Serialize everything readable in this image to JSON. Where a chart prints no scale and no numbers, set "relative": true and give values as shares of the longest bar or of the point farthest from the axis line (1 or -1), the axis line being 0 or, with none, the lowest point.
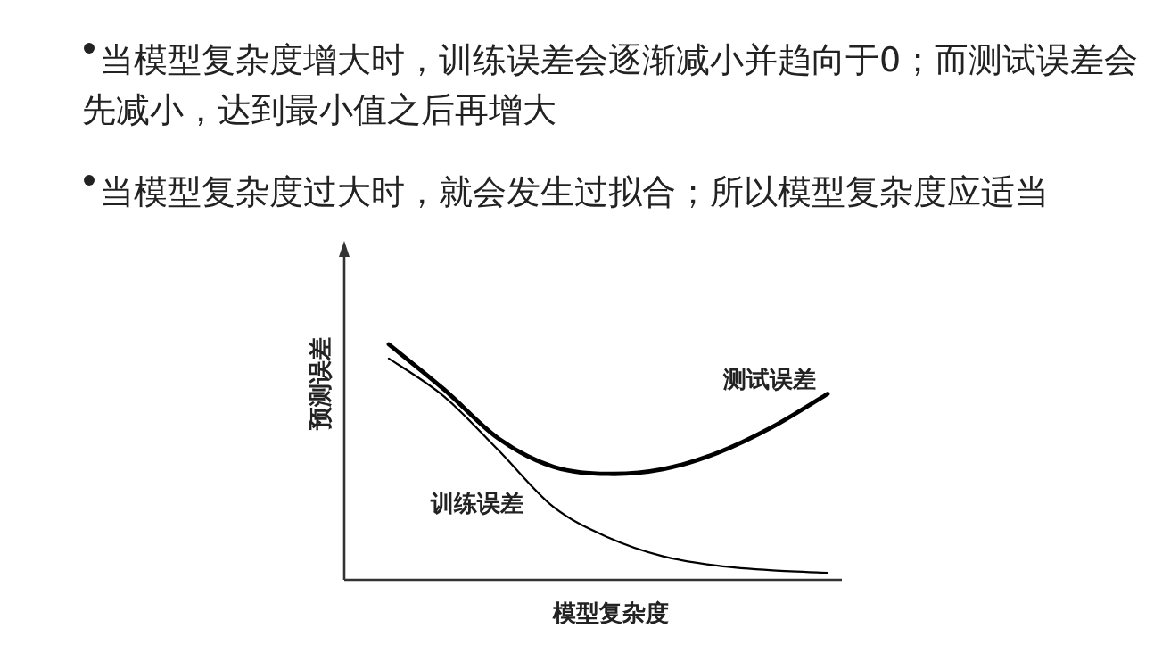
{
  "chart_data": {
    "type": "line",
    "relative": true,
    "xlabel": "模型复杂度",
    "ylabel": "预测误差",
    "annotations": [
      "当模型复杂度增大时，训练误差会逐渐减小并趋向于0；而测试误差会先减小，达到最小值之后再增大",
      "当模型复杂度过大时，就会发生过拟合；所以模型复杂度应适当"
    ],
    "categories": [
      null,
      null,
      null,
      null,
      null,
      null,
      null,
      null,
      null
    ],
    "series": [
      {
        "name": "测试误差",
        "color": "#000000",
        "values": [
          1,
          0.81,
          0.6,
          0.48,
          0.45,
          0.47,
          0.54,
          0.65,
          0.79
        ]
      },
      {
        "name": "训练误差",
        "color": "#000000",
        "values": [
          0.94,
          0.78,
          0.55,
          0.31,
          0.18,
          0.1,
          0.06,
          0.04,
          0.03
        ]
      }
    ],
    "marker": "none",
    "line_style": "solid"
  }
}
